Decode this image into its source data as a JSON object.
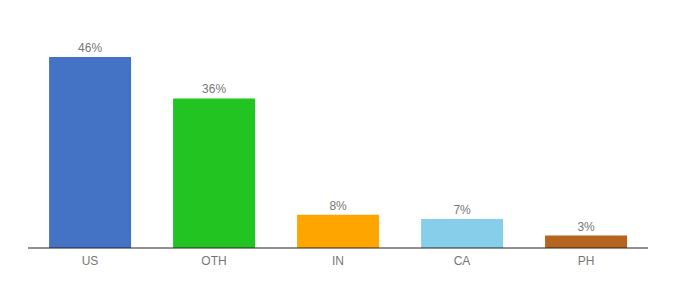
{
  "chart_data": {
    "type": "bar",
    "categories": [
      "US",
      "OTH",
      "IN",
      "CA",
      "PH"
    ],
    "values": [
      46,
      36,
      8,
      7,
      3
    ],
    "value_labels": [
      "46%",
      "36%",
      "8%",
      "7%",
      "3%"
    ],
    "data_labels": true,
    "colors": [
      "#4472c4",
      "#21c421",
      "#ffa500",
      "#87ceeb",
      "#b5651d"
    ],
    "ylim": [
      0,
      52
    ],
    "tick_labels": "x",
    "grid": false
  }
}
